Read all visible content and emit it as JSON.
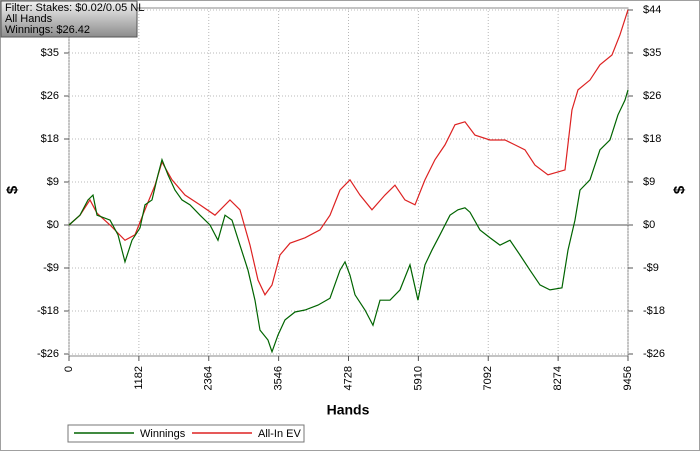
{
  "chart_data": {
    "type": "line",
    "annotations": [
      "Filter: Stakes: $0.02/0.05 NL",
      "All Hands",
      "Winnings: $26.42"
    ],
    "x_label": "Hands",
    "y_label": "$",
    "y2_label": "$",
    "xlim": [
      0,
      9456
    ],
    "xticks": [
      0,
      1182,
      2364,
      3546,
      4728,
      5910,
      7092,
      8274,
      9456
    ],
    "ylim": [
      -26.25,
      43.75
    ],
    "yticks": [
      {
        "value": -26.25,
        "label": "-$26"
      },
      {
        "value": -17.5,
        "label": "-$18"
      },
      {
        "value": -8.75,
        "label": "-$9"
      },
      {
        "value": 0,
        "label": "$0"
      },
      {
        "value": 8.75,
        "label": "$9"
      },
      {
        "value": 17.5,
        "label": "$18"
      },
      {
        "value": 26.25,
        "label": "$26"
      },
      {
        "value": 35,
        "label": "$35"
      },
      {
        "value": 43.75,
        "label": "$44"
      }
    ],
    "y2lim": [
      -26.25,
      43.75
    ],
    "y2ticks": [
      {
        "value": -26.25,
        "label": "-$26"
      },
      {
        "value": -17.5,
        "label": "-$18"
      },
      {
        "value": -8.75,
        "label": "-$9"
      },
      {
        "value": 0,
        "label": "$0"
      },
      {
        "value": 8.75,
        "label": "$9"
      },
      {
        "value": 17.5,
        "label": "$18"
      },
      {
        "value": 26.25,
        "label": "$26"
      },
      {
        "value": 35,
        "label": "$35"
      },
      {
        "value": 43.75,
        "label": "$44"
      }
    ],
    "grid": true,
    "legend": "bottom-left",
    "series": [
      {
        "name": "Winnings",
        "color": "#006400",
        "x": [
          0,
          186,
          321,
          406,
          474,
          694,
          829,
          947,
          1066,
          1201,
          1285,
          1404,
          1505,
          1573,
          1675,
          1793,
          1911,
          2047,
          2216,
          2385,
          2520,
          2639,
          2757,
          2892,
          3028,
          3146,
          3231,
          3366,
          3434,
          3535,
          3654,
          3823,
          3992,
          4212,
          4415,
          4584,
          4669,
          4753,
          4838,
          5007,
          5142,
          5261,
          5430,
          5599,
          5768,
          5903,
          6022,
          6140,
          6275,
          6445,
          6580,
          6698,
          6783,
          6952,
          7121,
          7290,
          7460,
          7629,
          7798,
          7967,
          8136,
          8339,
          8441,
          8559,
          8644,
          8813,
          8982,
          9151,
          9286,
          9405,
          9456
        ],
        "values": [
          0,
          2.0,
          5.1,
          6.1,
          2.0,
          1.0,
          -2.0,
          -7.5,
          -3.1,
          -0.6,
          4.1,
          5.1,
          10.2,
          13.3,
          10.2,
          7.1,
          5.1,
          4.1,
          2.0,
          0,
          -3.1,
          2.0,
          1.0,
          -4.1,
          -9.2,
          -15.3,
          -21.4,
          -23.4,
          -25.8,
          -22.4,
          -19.3,
          -17.7,
          -17.3,
          -16.3,
          -14.9,
          -9.2,
          -7.5,
          -10.2,
          -14.2,
          -17.3,
          -20.4,
          -15.3,
          -15.3,
          -13.2,
          -8.1,
          -15.3,
          -8.1,
          -5.1,
          -2.0,
          2.0,
          3.1,
          3.5,
          2.6,
          -1.0,
          -2.6,
          -4.1,
          -3.1,
          -6.1,
          -9.2,
          -12.2,
          -13.2,
          -12.8,
          -5.1,
          1.0,
          7.1,
          9.2,
          15.3,
          17.3,
          22.4,
          25.4,
          27.5
        ]
      },
      {
        "name": "All-In EV",
        "color": "#dd2222",
        "x": [
          0,
          186,
          355,
          474,
          694,
          947,
          1116,
          1285,
          1455,
          1573,
          1742,
          1962,
          2216,
          2469,
          2723,
          2892,
          3062,
          3197,
          3315,
          3434,
          3569,
          3738,
          3992,
          4245,
          4415,
          4584,
          4753,
          4922,
          5125,
          5345,
          5514,
          5683,
          5853,
          6022,
          6191,
          6360,
          6529,
          6698,
          6867,
          7121,
          7375,
          7544,
          7713,
          7882,
          8102,
          8390,
          8508,
          8610,
          8813,
          8982,
          9185,
          9320,
          9456
        ],
        "values": [
          0,
          2.0,
          5.1,
          2.4,
          0,
          -3.1,
          -2.0,
          3.1,
          8.1,
          12.8,
          9.2,
          6.1,
          4.1,
          2.0,
          5.1,
          3.1,
          -4.1,
          -11.2,
          -14.2,
          -12.2,
          -6.1,
          -3.7,
          -2.6,
          -1.0,
          2.0,
          7.1,
          9.2,
          6.1,
          3.1,
          6.1,
          8.1,
          5.1,
          4.1,
          9.2,
          13.3,
          16.3,
          20.4,
          21.0,
          18.3,
          17.3,
          17.3,
          16.3,
          15.3,
          12.2,
          10.2,
          11.2,
          23.4,
          27.5,
          29.5,
          32.6,
          34.6,
          38.7,
          43.8
        ]
      }
    ]
  }
}
